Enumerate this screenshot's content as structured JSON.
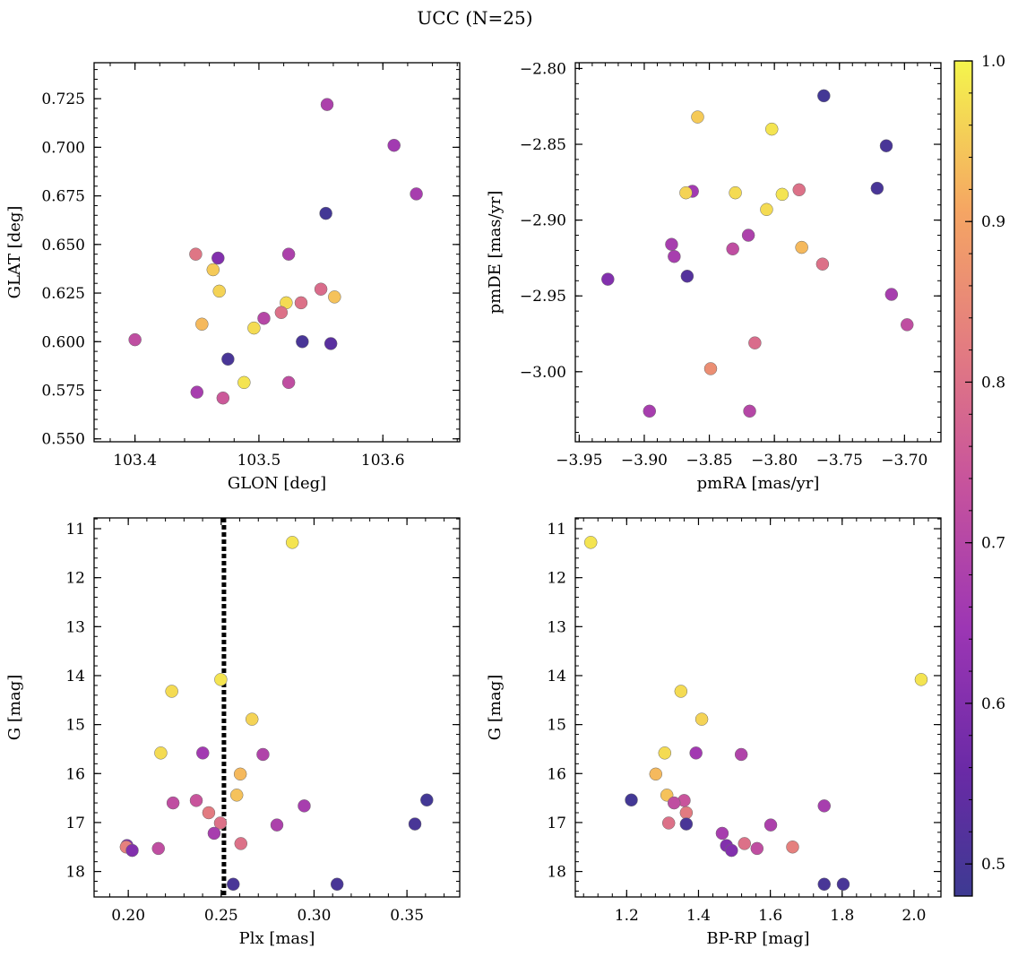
{
  "figure": {
    "title": "UCC (N=25)"
  },
  "colorbar": {
    "min": 0.48,
    "max": 1.0,
    "ticks": [
      0.5,
      0.6,
      0.7,
      0.8,
      0.9,
      1.0
    ],
    "tick_labels": [
      "0.5",
      "0.6",
      "0.7",
      "0.8",
      "0.9",
      "1.0"
    ],
    "colormap": "plasma"
  },
  "chart_data": [
    {
      "type": "scatter",
      "xlabel": "GLON [deg]",
      "ylabel": "GLAT [deg]",
      "xlim": [
        103.367,
        103.662
      ],
      "ylim": [
        0.5485,
        0.7435
      ],
      "xticks": [
        103.4,
        103.5,
        103.6
      ],
      "xtick_labels": [
        "103.4",
        "103.5",
        "103.6"
      ],
      "yticks": [
        0.55,
        0.575,
        0.6,
        0.625,
        0.65,
        0.675,
        0.7,
        0.725
      ],
      "ytick_labels": [
        "0.550",
        "0.575",
        "0.600",
        "0.625",
        "0.650",
        "0.675",
        "0.700",
        "0.725"
      ],
      "points": [
        {
          "x": 103.555,
          "y": 0.722,
          "c": 0.68
        },
        {
          "x": 103.609,
          "y": 0.701,
          "c": 0.66
        },
        {
          "x": 103.627,
          "y": 0.676,
          "c": 0.67
        },
        {
          "x": 103.554,
          "y": 0.666,
          "c": 0.49
        },
        {
          "x": 103.449,
          "y": 0.645,
          "c": 0.81
        },
        {
          "x": 103.467,
          "y": 0.643,
          "c": 0.6
        },
        {
          "x": 103.524,
          "y": 0.645,
          "c": 0.68
        },
        {
          "x": 103.463,
          "y": 0.637,
          "c": 0.95
        },
        {
          "x": 103.468,
          "y": 0.626,
          "c": 0.96
        },
        {
          "x": 103.55,
          "y": 0.627,
          "c": 0.79
        },
        {
          "x": 103.561,
          "y": 0.623,
          "c": 0.94
        },
        {
          "x": 103.522,
          "y": 0.62,
          "c": 0.97
        },
        {
          "x": 103.534,
          "y": 0.62,
          "c": 0.8
        },
        {
          "x": 103.518,
          "y": 0.615,
          "c": 0.8
        },
        {
          "x": 103.504,
          "y": 0.612,
          "c": 0.7
        },
        {
          "x": 103.454,
          "y": 0.609,
          "c": 0.93
        },
        {
          "x": 103.496,
          "y": 0.607,
          "c": 0.97
        },
        {
          "x": 103.4,
          "y": 0.601,
          "c": 0.72
        },
        {
          "x": 103.535,
          "y": 0.6,
          "c": 0.5
        },
        {
          "x": 103.558,
          "y": 0.599,
          "c": 0.53
        },
        {
          "x": 103.475,
          "y": 0.591,
          "c": 0.5
        },
        {
          "x": 103.488,
          "y": 0.579,
          "c": 0.98
        },
        {
          "x": 103.524,
          "y": 0.579,
          "c": 0.72
        },
        {
          "x": 103.45,
          "y": 0.574,
          "c": 0.67
        },
        {
          "x": 103.471,
          "y": 0.571,
          "c": 0.75
        }
      ]
    },
    {
      "type": "scatter",
      "xlabel": "pmRA [mas/yr]",
      "ylabel": "pmDE [mas/yr]",
      "xlim": [
        -3.953,
        -3.672
      ],
      "ylim": [
        -3.0462,
        -2.7962
      ],
      "xticks": [
        -3.95,
        -3.9,
        -3.85,
        -3.8,
        -3.75,
        -3.7
      ],
      "xtick_labels": [
        "−3.95",
        "−3.90",
        "−3.85",
        "−3.80",
        "−3.75",
        "−3.70"
      ],
      "yticks": [
        -3.0,
        -2.95,
        -2.9,
        -2.85,
        -2.8
      ],
      "ytick_labels": [
        "−3.00",
        "−2.95",
        "−2.90",
        "−2.85",
        "−2.80"
      ],
      "points": [
        {
          "x": -3.762,
          "y": -2.818,
          "c": 0.49
        },
        {
          "x": -3.859,
          "y": -2.832,
          "c": 0.95
        },
        {
          "x": -3.802,
          "y": -2.84,
          "c": 0.98
        },
        {
          "x": -3.714,
          "y": -2.851,
          "c": 0.5
        },
        {
          "x": -3.721,
          "y": -2.879,
          "c": 0.5
        },
        {
          "x": -3.863,
          "y": -2.881,
          "c": 0.66
        },
        {
          "x": -3.868,
          "y": -2.882,
          "c": 0.96
        },
        {
          "x": -3.83,
          "y": -2.882,
          "c": 0.97
        },
        {
          "x": -3.781,
          "y": -2.88,
          "c": 0.8
        },
        {
          "x": -3.794,
          "y": -2.883,
          "c": 0.98
        },
        {
          "x": -3.806,
          "y": -2.893,
          "c": 0.97
        },
        {
          "x": -3.82,
          "y": -2.91,
          "c": 0.68
        },
        {
          "x": -3.879,
          "y": -2.916,
          "c": 0.67
        },
        {
          "x": -3.832,
          "y": -2.919,
          "c": 0.72
        },
        {
          "x": -3.779,
          "y": -2.918,
          "c": 0.93
        },
        {
          "x": -3.877,
          "y": -2.924,
          "c": 0.67
        },
        {
          "x": -3.763,
          "y": -2.929,
          "c": 0.8
        },
        {
          "x": -3.928,
          "y": -2.939,
          "c": 0.6
        },
        {
          "x": -3.867,
          "y": -2.937,
          "c": 0.52
        },
        {
          "x": -3.71,
          "y": -2.949,
          "c": 0.67
        },
        {
          "x": -3.698,
          "y": -2.969,
          "c": 0.72
        },
        {
          "x": -3.815,
          "y": -2.981,
          "c": 0.79
        },
        {
          "x": -3.849,
          "y": -2.998,
          "c": 0.86
        },
        {
          "x": -3.896,
          "y": -3.026,
          "c": 0.67
        },
        {
          "x": -3.819,
          "y": -3.026,
          "c": 0.7
        }
      ]
    },
    {
      "type": "scatter",
      "xlabel": "Plx [mas]",
      "ylabel": "G [mag]",
      "xlim": [
        0.1816,
        0.3784
      ],
      "ylim": [
        18.52,
        10.78
      ],
      "xticks": [
        0.2,
        0.25,
        0.3,
        0.35
      ],
      "xtick_labels": [
        "0.20",
        "0.25",
        "0.30",
        "0.35"
      ],
      "yticks": [
        11,
        12,
        13,
        14,
        15,
        16,
        17,
        18
      ],
      "ytick_labels": [
        "11",
        "12",
        "13",
        "14",
        "15",
        "16",
        "17",
        "18"
      ],
      "vline": 0.2515,
      "points": [
        {
          "x": 0.2883,
          "y": 11.28,
          "c": 0.98
        },
        {
          "x": 0.2498,
          "y": 14.08,
          "c": 0.98
        },
        {
          "x": 0.2234,
          "y": 14.32,
          "c": 0.97
        },
        {
          "x": 0.2666,
          "y": 14.89,
          "c": 0.96
        },
        {
          "x": 0.2175,
          "y": 15.58,
          "c": 0.97
        },
        {
          "x": 0.2401,
          "y": 15.58,
          "c": 0.66
        },
        {
          "x": 0.2725,
          "y": 15.61,
          "c": 0.69
        },
        {
          "x": 0.2603,
          "y": 16.01,
          "c": 0.93
        },
        {
          "x": 0.2584,
          "y": 16.44,
          "c": 0.94
        },
        {
          "x": 0.3607,
          "y": 16.54,
          "c": 0.49
        },
        {
          "x": 0.2366,
          "y": 16.55,
          "c": 0.74
        },
        {
          "x": 0.2241,
          "y": 16.6,
          "c": 0.72
        },
        {
          "x": 0.2947,
          "y": 16.66,
          "c": 0.67
        },
        {
          "x": 0.2433,
          "y": 16.8,
          "c": 0.82
        },
        {
          "x": 0.2496,
          "y": 17.01,
          "c": 0.8
        },
        {
          "x": 0.3543,
          "y": 17.03,
          "c": 0.5
        },
        {
          "x": 0.28,
          "y": 17.05,
          "c": 0.68
        },
        {
          "x": 0.2462,
          "y": 17.22,
          "c": 0.67
        },
        {
          "x": 0.2606,
          "y": 17.43,
          "c": 0.8
        },
        {
          "x": 0.1993,
          "y": 17.47,
          "c": 0.6
        },
        {
          "x": 0.1989,
          "y": 17.5,
          "c": 0.83
        },
        {
          "x": 0.2162,
          "y": 17.53,
          "c": 0.72
        },
        {
          "x": 0.2021,
          "y": 17.57,
          "c": 0.6
        },
        {
          "x": 0.2565,
          "y": 18.26,
          "c": 0.5
        },
        {
          "x": 0.3124,
          "y": 18.26,
          "c": 0.5
        }
      ]
    },
    {
      "type": "scatter",
      "xlabel": "BP-RP [mag]",
      "ylabel": "G [mag]",
      "xlim": [
        1.057,
        2.075
      ],
      "ylim": [
        18.52,
        10.78
      ],
      "xticks": [
        1.2,
        1.4,
        1.6,
        1.8,
        2.0
      ],
      "xtick_labels": [
        "1.2",
        "1.4",
        "1.6",
        "1.8",
        "2.0"
      ],
      "yticks": [
        11,
        12,
        13,
        14,
        15,
        16,
        17,
        18
      ],
      "ytick_labels": [
        "11",
        "12",
        "13",
        "14",
        "15",
        "16",
        "17",
        "18"
      ],
      "points": [
        {
          "x": 1.1,
          "y": 11.28,
          "c": 0.98
        },
        {
          "x": 2.02,
          "y": 14.08,
          "c": 0.98
        },
        {
          "x": 1.351,
          "y": 14.32,
          "c": 0.97
        },
        {
          "x": 1.409,
          "y": 14.89,
          "c": 0.96
        },
        {
          "x": 1.306,
          "y": 15.58,
          "c": 0.97
        },
        {
          "x": 1.393,
          "y": 15.58,
          "c": 0.66
        },
        {
          "x": 1.519,
          "y": 15.61,
          "c": 0.69
        },
        {
          "x": 1.281,
          "y": 16.01,
          "c": 0.93
        },
        {
          "x": 1.312,
          "y": 16.44,
          "c": 0.94
        },
        {
          "x": 1.213,
          "y": 16.54,
          "c": 0.49
        },
        {
          "x": 1.36,
          "y": 16.55,
          "c": 0.74
        },
        {
          "x": 1.332,
          "y": 16.6,
          "c": 0.72
        },
        {
          "x": 1.75,
          "y": 16.66,
          "c": 0.67
        },
        {
          "x": 1.366,
          "y": 16.8,
          "c": 0.82
        },
        {
          "x": 1.317,
          "y": 17.01,
          "c": 0.8
        },
        {
          "x": 1.366,
          "y": 17.03,
          "c": 0.5
        },
        {
          "x": 1.601,
          "y": 17.05,
          "c": 0.68
        },
        {
          "x": 1.466,
          "y": 17.22,
          "c": 0.67
        },
        {
          "x": 1.528,
          "y": 17.43,
          "c": 0.8
        },
        {
          "x": 1.478,
          "y": 17.47,
          "c": 0.6
        },
        {
          "x": 1.662,
          "y": 17.5,
          "c": 0.83
        },
        {
          "x": 1.563,
          "y": 17.53,
          "c": 0.72
        },
        {
          "x": 1.492,
          "y": 17.57,
          "c": 0.6
        },
        {
          "x": 1.75,
          "y": 18.26,
          "c": 0.5
        },
        {
          "x": 1.803,
          "y": 18.26,
          "c": 0.5
        }
      ]
    }
  ]
}
